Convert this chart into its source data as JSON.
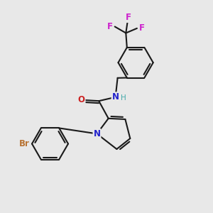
{
  "background_color": "#e8e8e8",
  "bond_color": "#1a1a1a",
  "bond_width": 1.5,
  "atom_labels": {
    "Br": {
      "color": "#b87333",
      "fontsize": 8.5,
      "fontweight": "bold"
    },
    "N_pyrrole": {
      "color": "#2222cc",
      "fontsize": 8.5,
      "fontweight": "bold"
    },
    "N_amide": {
      "color": "#2222cc",
      "fontsize": 8.5,
      "fontweight": "bold"
    },
    "H": {
      "color": "#44aaaa",
      "fontsize": 7.5,
      "fontweight": "normal"
    },
    "O": {
      "color": "#cc2222",
      "fontsize": 8.5,
      "fontweight": "bold"
    },
    "F": {
      "color": "#cc22cc",
      "fontsize": 8.5,
      "fontweight": "bold"
    }
  },
  "figsize": [
    3.0,
    3.0
  ],
  "dpi": 100
}
